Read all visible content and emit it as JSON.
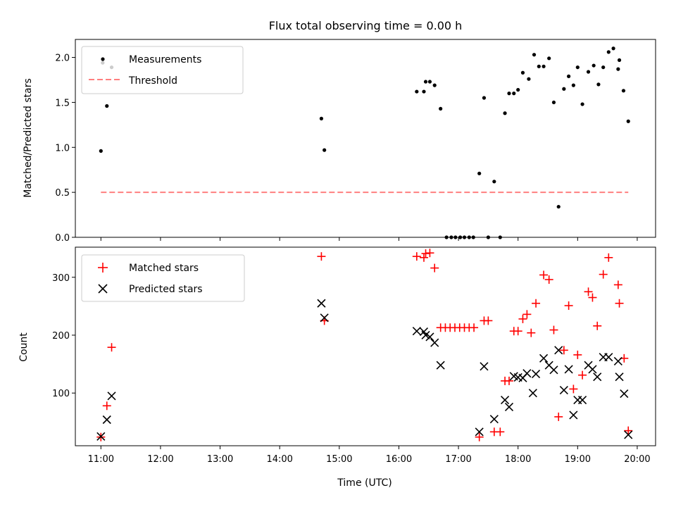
{
  "title": "Flux total observing time = 0.00 h",
  "chart_data": [
    {
      "type": "scatter",
      "ylabel": "Matched/Predicted stars",
      "xlim": [
        10.571,
        20.308
      ],
      "ylim": [
        0.0,
        2.2
      ],
      "yticks": [
        0.0,
        0.5,
        1.0,
        1.5,
        2.0
      ],
      "ytick_labels": [
        "0.0",
        "0.5",
        "1.0",
        "1.5",
        "2.0"
      ],
      "legend": {
        "position": "top-left",
        "entries": [
          {
            "label": "Measurements",
            "marker": "dot",
            "color": "#000000"
          },
          {
            "label": "Threshold",
            "marker": "dashed-line",
            "color": "#ff7f7f"
          }
        ]
      },
      "threshold": {
        "name": "Threshold",
        "value": 0.5,
        "x_range": [
          11.0,
          19.85
        ],
        "color": "#ff7f7f"
      },
      "series": [
        {
          "name": "Measurements",
          "color": "#000000",
          "points": [
            [
              11.0,
              0.96
            ],
            [
              11.03,
              1.94
            ],
            [
              11.1,
              1.46
            ],
            [
              11.18,
              1.89
            ],
            [
              14.7,
              1.32
            ],
            [
              14.75,
              0.97
            ],
            [
              16.3,
              1.62
            ],
            [
              16.42,
              1.62
            ],
            [
              16.45,
              1.73
            ],
            [
              16.52,
              1.73
            ],
            [
              16.6,
              1.69
            ],
            [
              16.7,
              1.43
            ],
            [
              16.8,
              0.0
            ],
            [
              16.88,
              0.0
            ],
            [
              16.95,
              0.0
            ],
            [
              17.03,
              0.0
            ],
            [
              17.1,
              0.0
            ],
            [
              17.18,
              0.0
            ],
            [
              17.25,
              0.0
            ],
            [
              17.35,
              0.71
            ],
            [
              17.43,
              1.55
            ],
            [
              17.5,
              0.0
            ],
            [
              17.6,
              0.62
            ],
            [
              17.7,
              0.0
            ],
            [
              17.78,
              1.38
            ],
            [
              17.85,
              1.6
            ],
            [
              17.93,
              1.6
            ],
            [
              18.0,
              1.64
            ],
            [
              18.08,
              1.83
            ],
            [
              18.18,
              1.76
            ],
            [
              18.27,
              2.03
            ],
            [
              18.35,
              1.9
            ],
            [
              18.43,
              1.9
            ],
            [
              18.52,
              1.99
            ],
            [
              18.6,
              1.5
            ],
            [
              18.68,
              0.34
            ],
            [
              18.77,
              1.65
            ],
            [
              18.85,
              1.79
            ],
            [
              18.93,
              1.69
            ],
            [
              19.0,
              1.89
            ],
            [
              19.08,
              1.48
            ],
            [
              19.18,
              1.84
            ],
            [
              19.27,
              1.91
            ],
            [
              19.35,
              1.7
            ],
            [
              19.43,
              1.89
            ],
            [
              19.52,
              2.06
            ],
            [
              19.6,
              2.1
            ],
            [
              19.68,
              1.87
            ],
            [
              19.7,
              1.97
            ],
            [
              19.77,
              1.63
            ],
            [
              19.85,
              1.29
            ]
          ]
        }
      ]
    },
    {
      "type": "scatter",
      "xlabel": "Time (UTC)",
      "ylabel": "Count",
      "xlim": [
        10.571,
        20.308
      ],
      "ylim": [
        9,
        352
      ],
      "xticks": [
        11,
        12,
        13,
        14,
        15,
        16,
        17,
        18,
        19,
        20
      ],
      "xtick_labels": [
        "11:00",
        "12:00",
        "13:00",
        "14:00",
        "15:00",
        "16:00",
        "17:00",
        "18:00",
        "19:00",
        "20:00"
      ],
      "yticks": [
        100,
        200,
        300
      ],
      "ytick_labels": [
        "100",
        "200",
        "300"
      ],
      "legend": {
        "position": "top-left",
        "entries": [
          {
            "label": "Matched stars",
            "marker": "plus",
            "color": "#ff0000"
          },
          {
            "label": "Predicted stars",
            "marker": "x",
            "color": "#000000"
          }
        ]
      },
      "series": [
        {
          "name": "Matched stars",
          "color": "#ff0000",
          "marker": "plus",
          "points": [
            [
              11.0,
              24
            ],
            [
              11.1,
              78
            ],
            [
              11.18,
              179
            ],
            [
              14.7,
              336
            ],
            [
              14.75,
              225
            ],
            [
              16.3,
              336
            ],
            [
              16.42,
              334
            ],
            [
              16.45,
              341
            ],
            [
              16.52,
              342
            ],
            [
              16.6,
              316
            ],
            [
              16.7,
              213
            ],
            [
              16.78,
              213
            ],
            [
              16.86,
              213
            ],
            [
              16.94,
              213
            ],
            [
              17.02,
              213
            ],
            [
              17.1,
              213
            ],
            [
              17.18,
              213
            ],
            [
              17.26,
              213
            ],
            [
              17.35,
              24
            ],
            [
              17.43,
              225
            ],
            [
              17.5,
              225
            ],
            [
              17.6,
              33
            ],
            [
              17.7,
              33
            ],
            [
              17.78,
              121
            ],
            [
              17.85,
              121
            ],
            [
              17.93,
              207
            ],
            [
              18.0,
              207
            ],
            [
              18.08,
              228
            ],
            [
              18.15,
              236
            ],
            [
              18.22,
              204
            ],
            [
              18.3,
              255
            ],
            [
              18.43,
              304
            ],
            [
              18.52,
              296
            ],
            [
              18.6,
              209
            ],
            [
              18.68,
              59
            ],
            [
              18.77,
              174
            ],
            [
              18.85,
              251
            ],
            [
              18.93,
              107
            ],
            [
              19.0,
              166
            ],
            [
              19.08,
              131
            ],
            [
              19.18,
              275
            ],
            [
              19.25,
              265
            ],
            [
              19.33,
              216
            ],
            [
              19.43,
              305
            ],
            [
              19.52,
              334
            ],
            [
              19.68,
              287
            ],
            [
              19.7,
              255
            ],
            [
              19.78,
              160
            ],
            [
              19.85,
              35
            ]
          ]
        },
        {
          "name": "Predicted stars",
          "color": "#000000",
          "marker": "x",
          "points": [
            [
              11.0,
              25
            ],
            [
              11.1,
              54
            ],
            [
              11.18,
              95
            ],
            [
              14.7,
              255
            ],
            [
              14.75,
              230
            ],
            [
              16.3,
              207
            ],
            [
              16.42,
              206
            ],
            [
              16.45,
              200
            ],
            [
              16.52,
              197
            ],
            [
              16.6,
              187
            ],
            [
              16.7,
              148
            ],
            [
              17.35,
              33
            ],
            [
              17.43,
              146
            ],
            [
              17.6,
              55
            ],
            [
              17.78,
              88
            ],
            [
              17.85,
              76
            ],
            [
              17.93,
              129
            ],
            [
              18.0,
              127
            ],
            [
              18.08,
              126
            ],
            [
              18.15,
              134
            ],
            [
              18.25,
              100
            ],
            [
              18.3,
              133
            ],
            [
              18.43,
              160
            ],
            [
              18.52,
              148
            ],
            [
              18.6,
              140
            ],
            [
              18.68,
              174
            ],
            [
              18.77,
              105
            ],
            [
              18.85,
              141
            ],
            [
              18.93,
              62
            ],
            [
              19.0,
              88
            ],
            [
              19.08,
              88
            ],
            [
              19.18,
              148
            ],
            [
              19.25,
              141
            ],
            [
              19.33,
              128
            ],
            [
              19.43,
              162
            ],
            [
              19.52,
              162
            ],
            [
              19.68,
              155
            ],
            [
              19.7,
              128
            ],
            [
              19.78,
              99
            ],
            [
              19.85,
              28
            ]
          ]
        }
      ]
    }
  ]
}
